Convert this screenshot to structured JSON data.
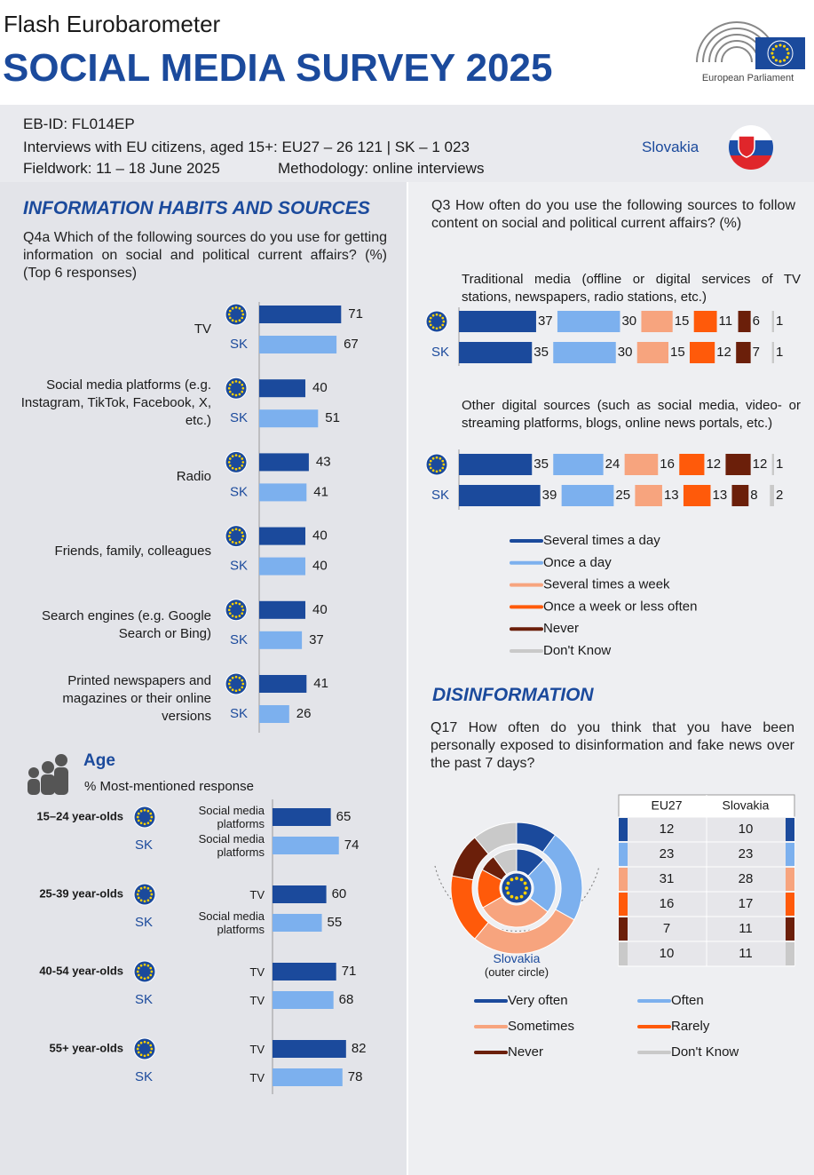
{
  "header": {
    "kicker": "Flash Eurobarometer",
    "title": "SOCIAL MEDIA SURVEY 2025",
    "logo_label": "European Parliament"
  },
  "meta": {
    "id": "EB-ID: FL014EP",
    "interviews": "Interviews with EU citizens, aged 15+: EU27 – 26 121 | SK – 1 023",
    "fieldwork": "Fieldwork: 11 – 18 June 2025",
    "methodology": "Methodology: online interviews",
    "country": "Slovakia"
  },
  "sections": {
    "info": "INFORMATION HABITS AND SOURCES",
    "disinfo": "DISINFORMATION"
  },
  "chart_data": [
    {
      "type": "bar",
      "orientation": "horizontal",
      "title": "Q4a Which of the following sources do you use for getting information on social and political current affairs? (%) (Top 6 responses)",
      "categories": [
        "TV",
        "Social media platforms (e.g. Instagram, TikTok, Facebook, X, etc.)",
        "Radio",
        "Friends, family, colleagues",
        "Search engines (e.g. Google Search or Bing)",
        "Printed newspapers and magazines or their online versions"
      ],
      "series": [
        {
          "color": "#1b4a9c",
          "values": [
            71,
            40,
            43,
            40,
            40,
            41
          ]
        },
        {
          "name": "SK",
          "color": "#7cb0ee",
          "values": [
            67,
            51,
            41,
            40,
            37,
            26
          ]
        }
      ]
    },
    {
      "type": "bar",
      "orientation": "horizontal",
      "title": "Age",
      "subtitle": "% Most-mentioned response",
      "categories": [
        "15–24 year-olds",
        "25-39 year-olds",
        "40-54 year-olds",
        "55+ year-olds"
      ],
      "series": [
        {
          "color": "#1b4a9c",
          "values": [
            65,
            60,
            71,
            82
          ],
          "responses": [
            "Social media platforms",
            "TV",
            "TV",
            "TV"
          ]
        },
        {
          "name": "SK",
          "color": "#7cb0ee",
          "values": [
            74,
            55,
            68,
            78
          ],
          "responses": [
            "Social media platforms",
            "Social media platforms",
            "TV",
            "TV"
          ]
        }
      ]
    },
    {
      "type": "stacked-bar",
      "orientation": "horizontal",
      "title": "Q3 How often do you use the following sources to follow content on social and political current affairs? (%)",
      "series": [
        {
          "name": "Several times a day",
          "color": "#1b4a9c"
        },
        {
          "name": "Once a day",
          "color": "#7cb0ee"
        },
        {
          "name": "Several times a week",
          "color": "#f7a47e"
        },
        {
          "name": "Once a week or less often",
          "color": "#ff5a0a"
        },
        {
          "name": "Never",
          "color": "#6b1f0a"
        },
        {
          "name": "Don't Know",
          "color": "#c9c9c9"
        }
      ],
      "groups": [
        {
          "label": "Traditional media (offline or digital services of TV stations, newspapers, radio stations, etc.)",
          "rows": [
            {
              "values": [
                37,
                30,
                15,
                11,
                6,
                1
              ]
            },
            {
              "name": "SK",
              "values": [
                35,
                30,
                15,
                12,
                7,
                1
              ]
            }
          ]
        },
        {
          "label": "Other digital sources (such as social media, video- or streaming platforms, blogs, online news portals, etc.)",
          "rows": [
            {
              "values": [
                35,
                24,
                16,
                12,
                12,
                1
              ]
            },
            {
              "name": "SK",
              "values": [
                39,
                25,
                13,
                13,
                8,
                2
              ]
            }
          ]
        }
      ]
    },
    {
      "type": "donut",
      "title": "Q17 How often do you think that you have been personally exposed to disinformation and fake news over the past 7 days?",
      "categories": [
        "Very often",
        "Often",
        "Sometimes",
        "Rarely",
        "Never",
        "Don't Know"
      ],
      "colors": [
        "#1b4a9c",
        "#7cb0ee",
        "#f7a47e",
        "#ff5a0a",
        "#6b1f0a",
        "#c9c9c9"
      ],
      "series": [
        {
          "name": "EU27",
          "values": [
            12,
            23,
            31,
            16,
            7,
            10
          ]
        },
        {
          "name": "Slovakia",
          "values": [
            10,
            23,
            28,
            17,
            11,
            11
          ]
        }
      ],
      "outer_label": "Slovakia",
      "outer_note": "(outer circle)"
    }
  ]
}
